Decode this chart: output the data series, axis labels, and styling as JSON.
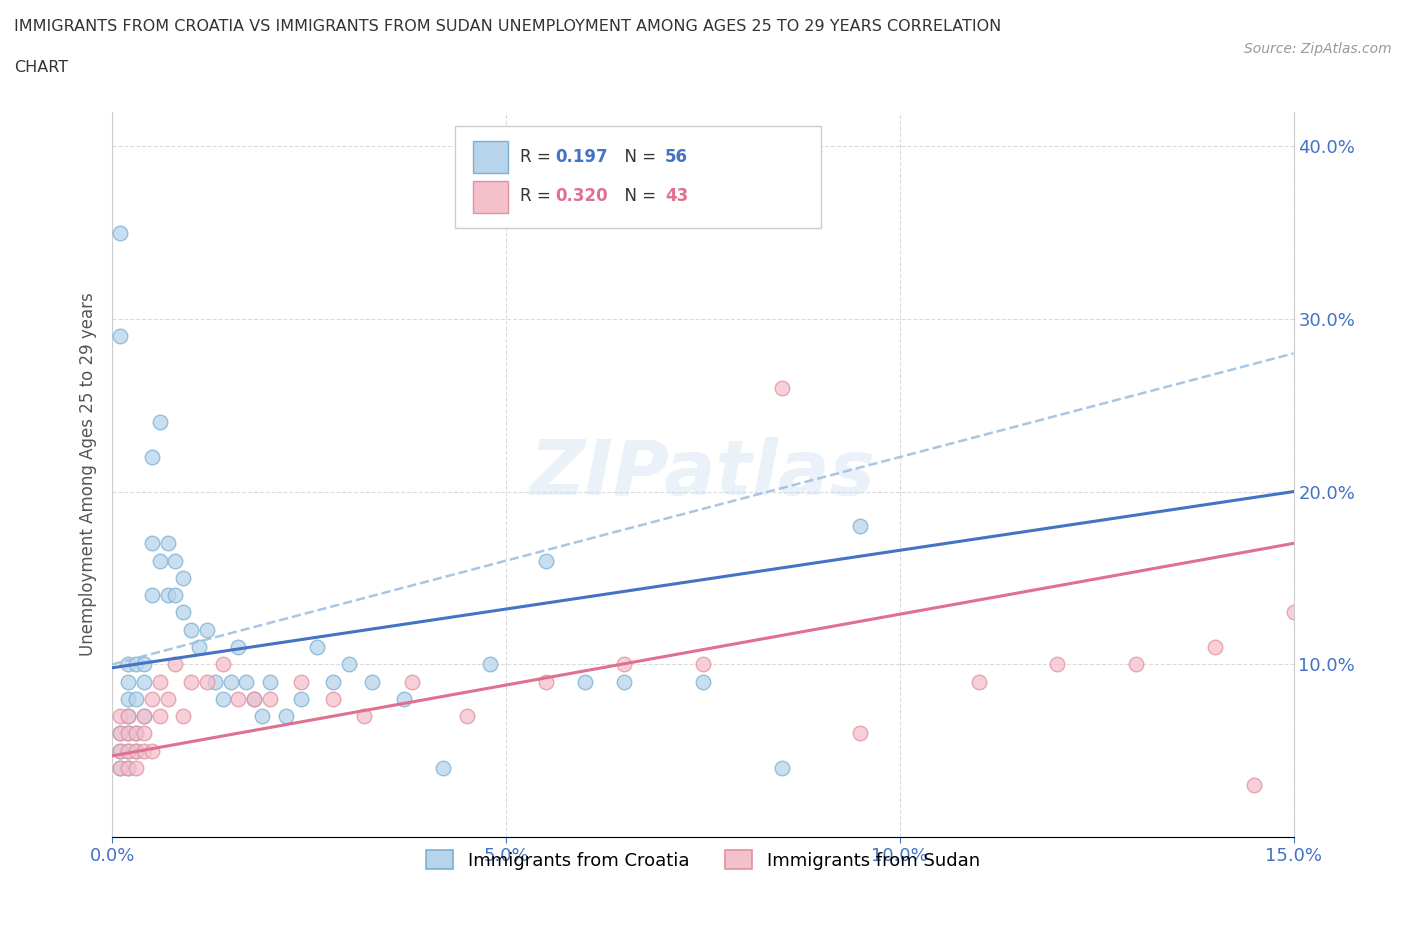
{
  "title": "IMMIGRANTS FROM CROATIA VS IMMIGRANTS FROM SUDAN UNEMPLOYMENT AMONG AGES 25 TO 29 YEARS CORRELATION\nCHART",
  "source_text": "Source: ZipAtlas.com",
  "ylabel": "Unemployment Among Ages 25 to 29 years",
  "xlim": [
    0.0,
    0.15
  ],
  "ylim": [
    0.0,
    0.42
  ],
  "xticks": [
    0.0,
    0.05,
    0.1,
    0.15
  ],
  "xticklabels": [
    "0.0%",
    "5.0%",
    "10.0%",
    "15.0%"
  ],
  "yticks_left": [
    0.0,
    0.1,
    0.2,
    0.3,
    0.4
  ],
  "yticklabels_left": [
    "",
    "",
    "",
    "",
    ""
  ],
  "yticks_right": [
    0.1,
    0.2,
    0.3,
    0.4
  ],
  "yticklabels_right": [
    "10.0%",
    "20.0%",
    "30.0%",
    "40.0%"
  ],
  "croatia_scatter_color": "#b8d4ea",
  "croatia_edge_color": "#7bafd4",
  "sudan_scatter_color": "#f4c0cc",
  "sudan_edge_color": "#e090a0",
  "croatia_line_color": "#4472c4",
  "sudan_line_color": "#e07090",
  "dashed_line_color": "#a0c0e0",
  "legend_r_croatia": "0.197",
  "legend_n_croatia": "56",
  "legend_r_sudan": "0.320",
  "legend_n_sudan": "43",
  "legend_label_croatia": "Immigrants from Croatia",
  "legend_label_sudan": "Immigrants from Sudan",
  "watermark": "ZIPatlas",
  "croatia_x": [
    0.001,
    0.001,
    0.001,
    0.001,
    0.001,
    0.002,
    0.002,
    0.002,
    0.002,
    0.002,
    0.002,
    0.002,
    0.003,
    0.003,
    0.003,
    0.003,
    0.004,
    0.004,
    0.004,
    0.005,
    0.005,
    0.005,
    0.006,
    0.006,
    0.007,
    0.007,
    0.008,
    0.008,
    0.009,
    0.009,
    0.01,
    0.011,
    0.012,
    0.013,
    0.014,
    0.015,
    0.016,
    0.017,
    0.018,
    0.019,
    0.02,
    0.022,
    0.024,
    0.026,
    0.028,
    0.03,
    0.033,
    0.037,
    0.042,
    0.048,
    0.055,
    0.06,
    0.065,
    0.075,
    0.085,
    0.095
  ],
  "croatia_y": [
    0.04,
    0.05,
    0.06,
    0.35,
    0.29,
    0.04,
    0.05,
    0.06,
    0.07,
    0.08,
    0.09,
    0.1,
    0.05,
    0.06,
    0.08,
    0.1,
    0.07,
    0.09,
    0.1,
    0.14,
    0.17,
    0.22,
    0.16,
    0.24,
    0.14,
    0.17,
    0.14,
    0.16,
    0.13,
    0.15,
    0.12,
    0.11,
    0.12,
    0.09,
    0.08,
    0.09,
    0.11,
    0.09,
    0.08,
    0.07,
    0.09,
    0.07,
    0.08,
    0.11,
    0.09,
    0.1,
    0.09,
    0.08,
    0.04,
    0.1,
    0.16,
    0.09,
    0.09,
    0.09,
    0.04,
    0.18
  ],
  "sudan_x": [
    0.001,
    0.001,
    0.001,
    0.001,
    0.002,
    0.002,
    0.002,
    0.002,
    0.003,
    0.003,
    0.003,
    0.004,
    0.004,
    0.004,
    0.005,
    0.005,
    0.006,
    0.006,
    0.007,
    0.008,
    0.009,
    0.01,
    0.012,
    0.014,
    0.016,
    0.018,
    0.02,
    0.024,
    0.028,
    0.032,
    0.038,
    0.045,
    0.055,
    0.065,
    0.075,
    0.085,
    0.095,
    0.11,
    0.12,
    0.13,
    0.14,
    0.145,
    0.15
  ],
  "sudan_y": [
    0.04,
    0.05,
    0.06,
    0.07,
    0.04,
    0.05,
    0.06,
    0.07,
    0.04,
    0.05,
    0.06,
    0.05,
    0.06,
    0.07,
    0.05,
    0.08,
    0.07,
    0.09,
    0.08,
    0.1,
    0.07,
    0.09,
    0.09,
    0.1,
    0.08,
    0.08,
    0.08,
    0.09,
    0.08,
    0.07,
    0.09,
    0.07,
    0.09,
    0.1,
    0.1,
    0.26,
    0.06,
    0.09,
    0.1,
    0.1,
    0.11,
    0.03,
    0.13
  ],
  "croatia_trend": [
    0.098,
    0.2
  ],
  "sudan_trend": [
    0.047,
    0.17
  ],
  "dashed_trend": [
    0.1,
    0.28
  ]
}
